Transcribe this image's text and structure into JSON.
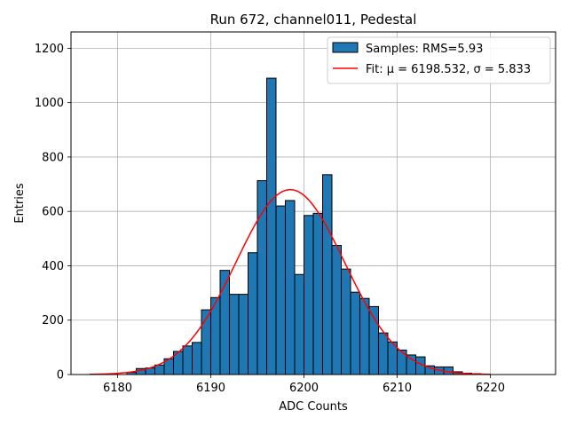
{
  "chart_data": {
    "type": "bar",
    "title": "Run 672, channel011, Pedestal",
    "xlabel": "ADC Counts",
    "ylabel": "Entries",
    "xlim": [
      6175,
      6227
    ],
    "ylim": [
      0,
      1260
    ],
    "xticks": [
      6180,
      6190,
      6200,
      6210,
      6220
    ],
    "yticks": [
      0,
      200,
      400,
      600,
      800,
      1000,
      1200
    ],
    "grid": true,
    "legend_position": "top-right",
    "histogram": {
      "name": "Samples: RMS=5.93",
      "color": "#1f77b4",
      "edge_color": "#000000",
      "bin_width": 1,
      "bins_left": [
        6181,
        6182,
        6183,
        6184,
        6185,
        6186,
        6187,
        6188,
        6189,
        6190,
        6191,
        6192,
        6193,
        6194,
        6195,
        6196,
        6197,
        6198,
        6199,
        6200,
        6201,
        6202,
        6203,
        6204,
        6205,
        6206,
        6207,
        6208,
        6209,
        6210,
        6211,
        6212,
        6213,
        6214,
        6215,
        6216,
        6217,
        6218
      ],
      "counts": [
        8,
        22,
        24,
        35,
        58,
        85,
        105,
        118,
        238,
        283,
        383,
        295,
        295,
        448,
        713,
        1090,
        620,
        640,
        368,
        585,
        593,
        735,
        475,
        388,
        303,
        280,
        250,
        153,
        120,
        90,
        72,
        65,
        32,
        28,
        28,
        10,
        5,
        3
      ]
    },
    "fit": {
      "name": "Fit: μ = 6198.532, σ = 5.833",
      "color": "#ff0000",
      "mu": 6198.532,
      "sigma": 5.833,
      "amplitude": 680,
      "x_range": [
        6177,
        6220
      ]
    }
  }
}
